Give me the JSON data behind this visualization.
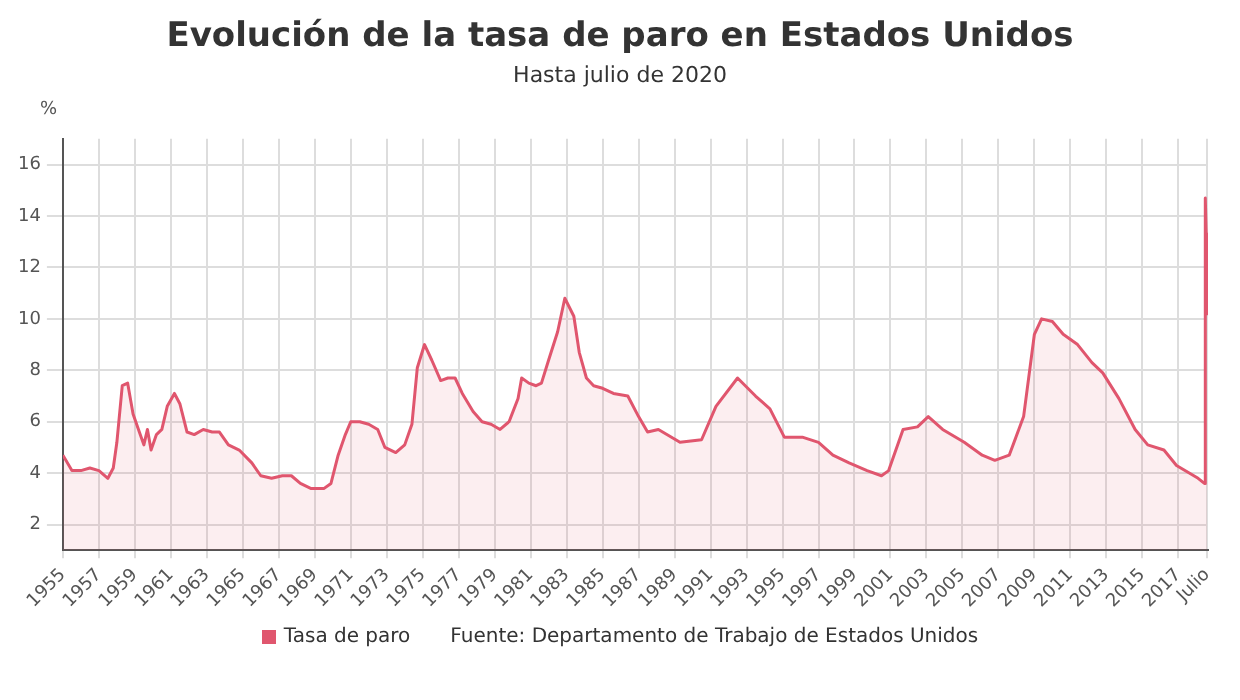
{
  "chart_data": {
    "type": "area",
    "title": "Evolución de la tasa de paro en Estados Unidos",
    "subtitle": "Hasta julio de 2020",
    "ylabel": "%",
    "annotations": [
      "Fuente: Departamento de Trabajo de Estados Unidos"
    ],
    "series": [
      {
        "name": "Tasa de paro",
        "color": "#e0566e",
        "x": [
          1955.0,
          1955.5,
          1956.0,
          1956.5,
          1957.0,
          1957.5,
          1957.8,
          1958.0,
          1958.3,
          1958.6,
          1958.9,
          1959.2,
          1959.5,
          1959.7,
          1959.9,
          1960.2,
          1960.5,
          1960.8,
          1961.2,
          1961.5,
          1961.9,
          1962.3,
          1962.8,
          1963.3,
          1963.7,
          1964.2,
          1964.8,
          1965.5,
          1966.0,
          1966.6,
          1967.2,
          1967.7,
          1968.2,
          1968.8,
          1969.5,
          1969.9,
          1970.3,
          1970.7,
          1971.0,
          1971.5,
          1972.0,
          1972.5,
          1972.9,
          1973.5,
          1974.0,
          1974.4,
          1974.7,
          1975.1,
          1975.5,
          1976.0,
          1976.4,
          1976.8,
          1977.2,
          1977.8,
          1978.3,
          1978.8,
          1979.3,
          1979.8,
          1980.3,
          1980.5,
          1980.9,
          1981.3,
          1981.6,
          1982.0,
          1982.5,
          1982.9,
          1983.4,
          1983.7,
          1984.1,
          1984.5,
          1985.0,
          1985.6,
          1986.4,
          1987.0,
          1987.5,
          1988.1,
          1989.3,
          1990.5,
          1991.3,
          1992.5,
          1993.5,
          1994.3,
          1995.1,
          1996.1,
          1997.0,
          1997.8,
          1998.7,
          1999.7,
          2000.5,
          2000.9,
          2001.7,
          2002.5,
          2003.1,
          2003.9,
          2005.1,
          2006.1,
          2006.8,
          2007.6,
          2008.4,
          2009.0,
          2009.4,
          2010.0,
          2010.6,
          2011.4,
          2012.2,
          2012.8,
          2013.7,
          2014.6,
          2015.3,
          2016.2,
          2016.9,
          2018.1,
          2018.45,
          2018.5,
          2018.55,
          2018.6
        ],
        "values": [
          4.7,
          4.1,
          4.1,
          4.2,
          4.1,
          3.8,
          4.2,
          5.2,
          7.4,
          7.5,
          6.3,
          5.7,
          5.1,
          5.7,
          4.9,
          5.5,
          5.7,
          6.6,
          7.1,
          6.7,
          5.6,
          5.5,
          5.7,
          5.6,
          5.6,
          5.1,
          4.9,
          4.4,
          3.9,
          3.8,
          3.9,
          3.9,
          3.6,
          3.4,
          3.4,
          3.6,
          4.7,
          5.5,
          6.0,
          6.0,
          5.9,
          5.7,
          5.0,
          4.8,
          5.1,
          5.9,
          8.1,
          9.0,
          8.4,
          7.6,
          7.7,
          7.7,
          7.1,
          6.4,
          6.0,
          5.9,
          5.7,
          6.0,
          6.9,
          7.7,
          7.5,
          7.4,
          7.5,
          8.4,
          9.5,
          10.8,
          10.1,
          8.7,
          7.7,
          7.4,
          7.3,
          7.1,
          7.0,
          6.2,
          5.6,
          5.7,
          5.2,
          5.3,
          6.6,
          7.7,
          7.0,
          6.5,
          5.4,
          5.4,
          5.2,
          4.7,
          4.4,
          4.1,
          3.9,
          4.1,
          5.7,
          5.8,
          6.2,
          5.7,
          5.2,
          4.7,
          4.5,
          4.7,
          6.2,
          9.4,
          10.0,
          9.9,
          9.4,
          9.0,
          8.3,
          7.9,
          6.9,
          5.7,
          5.1,
          4.9,
          4.3,
          3.8,
          3.6,
          14.7,
          13.3,
          10.2
        ]
      }
    ],
    "xlim": [
      1955,
      2018.65
    ],
    "xticks": [
      1955,
      1957,
      1959,
      1961,
      1963,
      1965,
      1967,
      1969,
      1971,
      1973,
      1975,
      1977,
      1979,
      1981,
      1983,
      1985,
      1987,
      1989,
      1991,
      1993,
      1995,
      1997,
      1999,
      2001,
      2003,
      2005,
      2007,
      2009,
      2011,
      2013,
      2015,
      2017,
      {
        "value": 2018.6,
        "label": "Julio"
      }
    ],
    "ylim": [
      1,
      17
    ],
    "yticks": [
      2,
      4,
      6,
      8,
      10,
      12,
      14,
      16
    ],
    "grid": true,
    "legend": "bottom"
  }
}
